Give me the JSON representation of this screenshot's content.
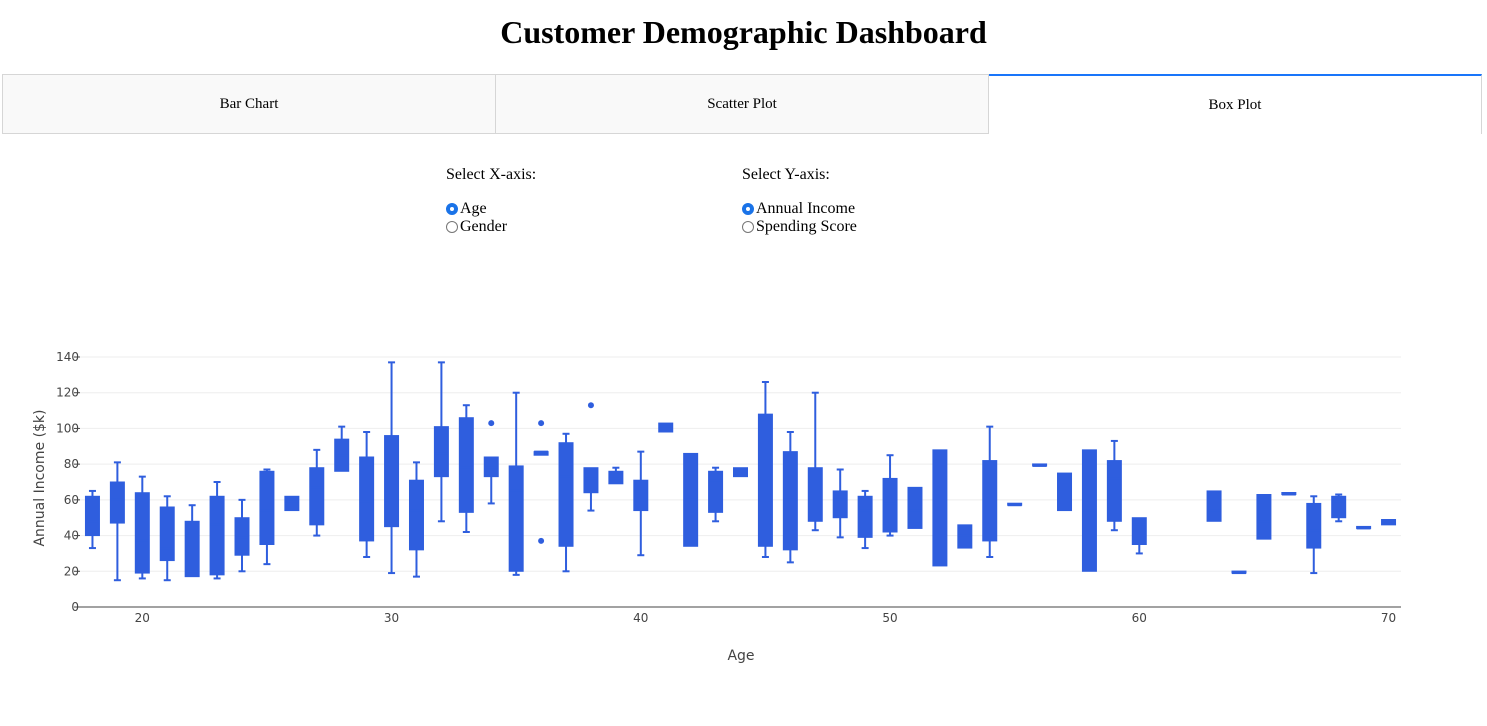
{
  "page": {
    "title": "Customer Demographic Dashboard"
  },
  "tabs": [
    {
      "label": "Bar Chart",
      "active": false
    },
    {
      "label": "Scatter Plot",
      "active": false
    },
    {
      "label": "Box Plot",
      "active": true
    }
  ],
  "controls": {
    "x_axis": {
      "label": "Select X-axis:",
      "options": [
        "Age",
        "Gender"
      ],
      "selected": "Age"
    },
    "y_axis": {
      "label": "Select Y-axis:",
      "options": [
        "Annual Income",
        "Spending Score"
      ],
      "selected": "Annual Income"
    }
  },
  "colors": {
    "box": "#2f5ede",
    "accent": "#1975fa",
    "grid": "#eeeeee"
  },
  "chart_data": {
    "type": "box",
    "xlabel": "Age",
    "ylabel": "Annual Income ($k)",
    "xlim": [
      17.5,
      70.5
    ],
    "ylim": [
      0,
      140
    ],
    "xticks": [
      20,
      30,
      40,
      50,
      60,
      70
    ],
    "yticks": [
      0,
      20,
      40,
      60,
      80,
      100,
      120,
      140
    ],
    "grid": true,
    "boxes": [
      {
        "x": 18,
        "min": 33,
        "q1": 40,
        "median": 48,
        "q3": 62,
        "max": 65
      },
      {
        "x": 19,
        "min": 15,
        "q1": 47,
        "median": 60,
        "q3": 70,
        "max": 81
      },
      {
        "x": 20,
        "min": 16,
        "q1": 19,
        "median": 37,
        "q3": 64,
        "max": 73
      },
      {
        "x": 21,
        "min": 15,
        "q1": 26,
        "median": 33,
        "q3": 56,
        "max": 62
      },
      {
        "x": 22,
        "min": 17,
        "q1": 17,
        "median": 20,
        "q3": 48,
        "max": 57
      },
      {
        "x": 23,
        "min": 16,
        "q1": 18,
        "median": 46,
        "q3": 62,
        "max": 70
      },
      {
        "x": 24,
        "min": 20,
        "q1": 29,
        "median": 39,
        "q3": 50,
        "max": 60
      },
      {
        "x": 25,
        "min": 24,
        "q1": 35,
        "median": 54,
        "q3": 76,
        "max": 77
      },
      {
        "x": 26,
        "min": 54,
        "q1": 54,
        "median": 59,
        "q3": 62,
        "max": 62
      },
      {
        "x": 27,
        "min": 40,
        "q1": 46,
        "median": 67,
        "q3": 78,
        "max": 88
      },
      {
        "x": 28,
        "min": 76,
        "q1": 76,
        "median": 85,
        "q3": 94,
        "max": 101
      },
      {
        "x": 29,
        "min": 28,
        "q1": 37,
        "median": 59,
        "q3": 84,
        "max": 98
      },
      {
        "x": 30,
        "min": 19,
        "q1": 45,
        "median": 70,
        "q3": 96,
        "max": 137
      },
      {
        "x": 31,
        "min": 17,
        "q1": 32,
        "median": 54,
        "q3": 71,
        "max": 81
      },
      {
        "x": 32,
        "min": 48,
        "q1": 73,
        "median": 86,
        "q3": 101,
        "max": 137
      },
      {
        "x": 33,
        "min": 42,
        "q1": 53,
        "median": 78,
        "q3": 106,
        "max": 113
      },
      {
        "x": 34,
        "min": 58,
        "q1": 73,
        "median": 78,
        "q3": 84,
        "max": 84,
        "outliers": [
          103
        ]
      },
      {
        "x": 35,
        "min": 18,
        "q1": 20,
        "median": 65,
        "q3": 79,
        "max": 120
      },
      {
        "x": 36,
        "min": 85,
        "q1": 85,
        "median": 87,
        "q3": 87,
        "max": 87,
        "outliers": [
          103,
          37
        ]
      },
      {
        "x": 37,
        "min": 20,
        "q1": 34,
        "median": 73,
        "q3": 92,
        "max": 97
      },
      {
        "x": 38,
        "min": 54,
        "q1": 64,
        "median": 72,
        "q3": 78,
        "max": 78,
        "outliers": [
          113
        ]
      },
      {
        "x": 39,
        "min": 69,
        "q1": 69,
        "median": 72,
        "q3": 76,
        "max": 78
      },
      {
        "x": 40,
        "min": 29,
        "q1": 54,
        "median": 63,
        "q3": 71,
        "max": 87
      },
      {
        "x": 41,
        "min": 98,
        "q1": 98,
        "median": 101,
        "q3": 103,
        "max": 103
      },
      {
        "x": 42,
        "min": 34,
        "q1": 34,
        "median": 60,
        "q3": 86,
        "max": 86
      },
      {
        "x": 43,
        "min": 48,
        "q1": 53,
        "median": 71,
        "q3": 76,
        "max": 78
      },
      {
        "x": 44,
        "min": 73,
        "q1": 73,
        "median": 75,
        "q3": 78,
        "max": 78
      },
      {
        "x": 45,
        "min": 28,
        "q1": 34,
        "median": 63,
        "q3": 108,
        "max": 126
      },
      {
        "x": 46,
        "min": 25,
        "q1": 32,
        "median": 60,
        "q3": 87,
        "max": 98
      },
      {
        "x": 47,
        "min": 43,
        "q1": 48,
        "median": 63,
        "q3": 78,
        "max": 120
      },
      {
        "x": 48,
        "min": 39,
        "q1": 50,
        "median": 60,
        "q3": 65,
        "max": 77
      },
      {
        "x": 49,
        "min": 33,
        "q1": 39,
        "median": 54,
        "q3": 62,
        "max": 65
      },
      {
        "x": 50,
        "min": 40,
        "q1": 42,
        "median": 58,
        "q3": 72,
        "max": 85
      },
      {
        "x": 51,
        "min": 44,
        "q1": 44,
        "median": 54,
        "q3": 67,
        "max": 67
      },
      {
        "x": 52,
        "min": 23,
        "q1": 23,
        "median": 63,
        "q3": 88,
        "max": 88
      },
      {
        "x": 53,
        "min": 33,
        "q1": 33,
        "median": 40,
        "q3": 46,
        "max": 46
      },
      {
        "x": 54,
        "min": 28,
        "q1": 37,
        "median": 63,
        "q3": 82,
        "max": 101
      },
      {
        "x": 55,
        "min": 57,
        "q1": 57,
        "median": 57,
        "q3": 57,
        "max": 57
      },
      {
        "x": 56,
        "min": 79,
        "q1": 79,
        "median": 79,
        "q3": 79,
        "max": 79
      },
      {
        "x": 57,
        "min": 54,
        "q1": 54,
        "median": 63,
        "q3": 75,
        "max": 75
      },
      {
        "x": 58,
        "min": 20,
        "q1": 20,
        "median": 54,
        "q3": 88,
        "max": 88
      },
      {
        "x": 59,
        "min": 43,
        "q1": 48,
        "median": 72,
        "q3": 82,
        "max": 93
      },
      {
        "x": 60,
        "min": 30,
        "q1": 35,
        "median": 46,
        "q3": 50,
        "max": 50
      },
      {
        "x": 63,
        "min": 48,
        "q1": 48,
        "median": 54,
        "q3": 65,
        "max": 65
      },
      {
        "x": 64,
        "min": 19,
        "q1": 19,
        "median": 19,
        "q3": 19,
        "max": 19
      },
      {
        "x": 65,
        "min": 38,
        "q1": 38,
        "median": 48,
        "q3": 63,
        "max": 63
      },
      {
        "x": 66,
        "min": 63,
        "q1": 63,
        "median": 63,
        "q3": 63,
        "max": 63
      },
      {
        "x": 67,
        "min": 19,
        "q1": 33,
        "median": 43,
        "q3": 58,
        "max": 62
      },
      {
        "x": 68,
        "min": 48,
        "q1": 50,
        "median": 59,
        "q3": 62,
        "max": 63
      },
      {
        "x": 69,
        "min": 44,
        "q1": 44,
        "median": 44,
        "q3": 44,
        "max": 44
      },
      {
        "x": 70,
        "min": 46,
        "q1": 46,
        "median": 47,
        "q3": 49,
        "max": 49
      }
    ]
  }
}
